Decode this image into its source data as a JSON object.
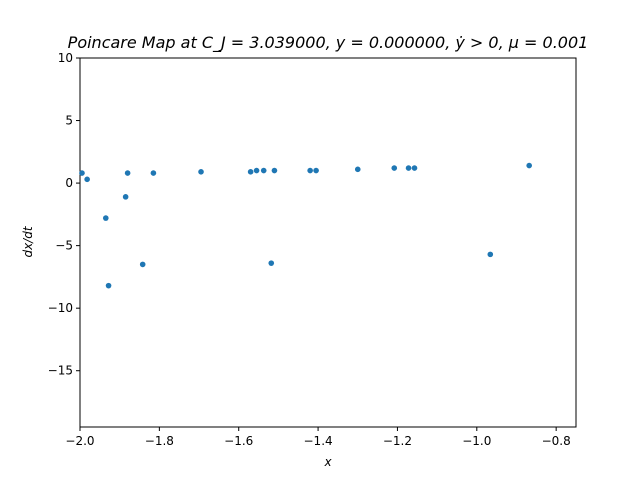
{
  "chart_data": {
    "type": "scatter",
    "title": "Poincare Map at C_J = 3.039000, y = 0.000000, ẏ > 0, μ = 0.001",
    "xlabel": "x",
    "ylabel": "dx/dt",
    "xlim": [
      -2.0,
      -0.75
    ],
    "ylim": [
      -19.5,
      10
    ],
    "xticks": [
      -2.0,
      -1.8,
      -1.6,
      -1.4,
      -1.2,
      -1.0,
      -0.8
    ],
    "xtick_labels": [
      "−2.0",
      "−1.8",
      "−1.6",
      "−1.4",
      "−1.2",
      "−1.0",
      "−0.8"
    ],
    "yticks": [
      10,
      5,
      0,
      -5,
      -10,
      -15
    ],
    "ytick_labels": [
      "10",
      "5",
      "0",
      "−5",
      "−10",
      "−15"
    ],
    "grid": false,
    "marker_color": "#1f77b4",
    "series": [
      {
        "x": [
          -1.995,
          -1.982,
          -1.935,
          -1.928,
          -1.885,
          -1.88,
          -1.842,
          -1.815,
          -1.695,
          -1.57,
          -1.555,
          -1.537,
          -1.518,
          -1.51,
          -1.42,
          -1.405,
          -1.3,
          -1.208,
          -1.172,
          -1.157,
          -0.966,
          -0.868
        ],
        "y": [
          0.8,
          0.3,
          -2.8,
          -8.2,
          -1.1,
          0.8,
          -6.5,
          0.8,
          0.9,
          0.9,
          1.0,
          1.0,
          -6.4,
          1.0,
          1.0,
          1.0,
          1.1,
          1.2,
          1.2,
          1.2,
          -5.7,
          1.4
        ]
      }
    ]
  }
}
